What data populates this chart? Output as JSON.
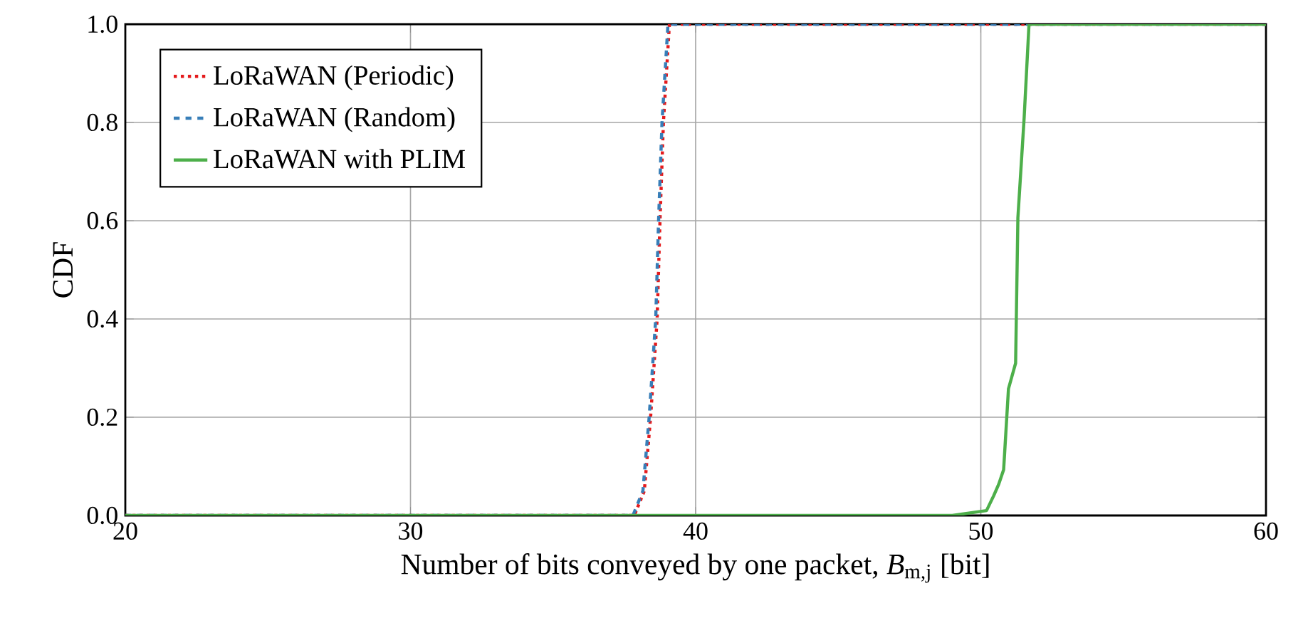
{
  "chart_data": {
    "type": "line",
    "xlabel": "Number of bits conveyed by one packet,  *B*$_{m,j}$ [bit]",
    "ylabel": "CDF",
    "xlim": [
      20,
      60
    ],
    "xticks": [
      20,
      30,
      40,
      50,
      60
    ],
    "ylim": [
      0,
      1
    ],
    "yticks": [
      {
        "value": 0,
        "label": "0.0"
      },
      {
        "value": 0.2,
        "label": "0.2"
      },
      {
        "value": 0.4,
        "label": "0.4"
      },
      {
        "value": 0.6,
        "label": "0.6"
      },
      {
        "value": 0.8,
        "label": "0.8"
      },
      {
        "value": 1,
        "label": "1.0"
      }
    ],
    "grid": true,
    "legend": "top left",
    "series": [
      {
        "name": "LoRaWAN (Periodic)",
        "color": "#e41a1c",
        "line_style": "dotted",
        "x": [
          20,
          37.85,
          38.2,
          38.42,
          38.65,
          38.75,
          38.87,
          39.08,
          60
        ],
        "values": [
          0,
          0,
          0.05,
          0.2,
          0.4,
          0.6,
          0.8,
          1,
          1
        ]
      },
      {
        "name": "LoRaWAN (Random)",
        "color": "#377eb8",
        "line_style": "dashed",
        "x": [
          20,
          37.8,
          38.15,
          38.37,
          38.6,
          38.7,
          38.82,
          39.03,
          60
        ],
        "values": [
          0,
          0,
          0.05,
          0.2,
          0.4,
          0.6,
          0.8,
          1,
          1
        ]
      },
      {
        "name": "LoRaWAN with PLIM",
        "color": "#4daf4a",
        "line_style": "solid",
        "x": [
          20,
          49,
          50.2,
          50.45,
          50.63,
          50.8,
          50.97,
          51.22,
          51.3,
          51.52,
          51.69,
          60
        ],
        "values": [
          0,
          0,
          0.01,
          0.04,
          0.064,
          0.093,
          0.258,
          0.31,
          0.606,
          0.81,
          1,
          1
        ]
      }
    ]
  }
}
